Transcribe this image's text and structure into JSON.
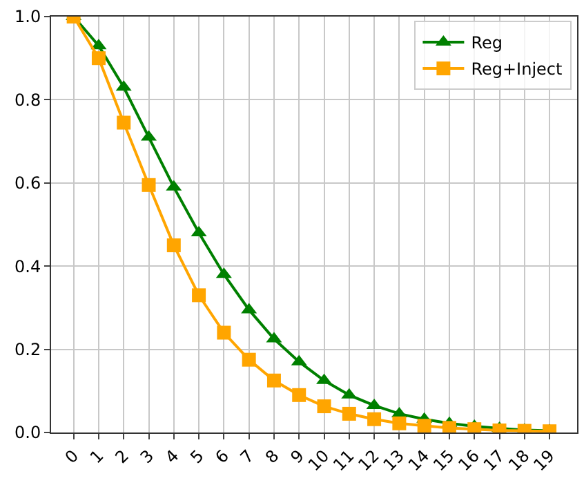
{
  "chart_data": {
    "type": "line",
    "x": [
      0,
      1,
      2,
      3,
      4,
      5,
      6,
      7,
      8,
      9,
      10,
      11,
      12,
      13,
      14,
      15,
      16,
      17,
      18,
      19
    ],
    "xlim": [
      -0.9,
      20.1
    ],
    "xticks": [
      0,
      1,
      2,
      3,
      4,
      5,
      6,
      7,
      8,
      9,
      10,
      11,
      12,
      13,
      14,
      15,
      16,
      17,
      18,
      19
    ],
    "ylim": [
      0,
      1
    ],
    "yticks": [
      {
        "value": 0,
        "label": "0.0"
      },
      0.2,
      0.4,
      0.6,
      0.8,
      {
        "value": 1,
        "label": "1.0"
      }
    ],
    "grid": true,
    "legend": "top right",
    "line_style": "solid",
    "series": [
      {
        "name": "Reg",
        "color": "#008000",
        "marker": "triangle",
        "values": [
          1.0,
          0.93,
          0.83,
          0.71,
          0.59,
          0.48,
          0.38,
          0.295,
          0.225,
          0.17,
          0.125,
          0.09,
          0.065,
          0.045,
          0.032,
          0.022,
          0.015,
          0.01,
          0.006,
          0.004
        ]
      },
      {
        "name": "Reg+Inject",
        "color": "#ffa500",
        "marker": "square",
        "values": [
          1.0,
          0.9,
          0.745,
          0.595,
          0.45,
          0.33,
          0.24,
          0.175,
          0.125,
          0.09,
          0.063,
          0.045,
          0.032,
          0.022,
          0.016,
          0.011,
          0.008,
          0.005,
          0.004,
          0.003
        ]
      }
    ]
  }
}
